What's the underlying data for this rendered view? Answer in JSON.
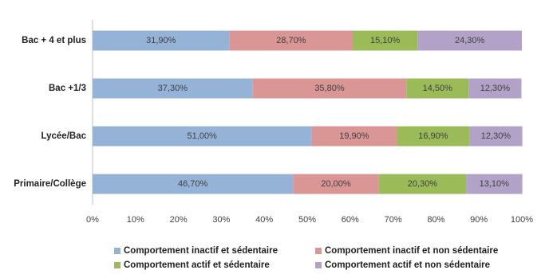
{
  "chart_data": {
    "type": "stacked-bar-horizontal",
    "categories": [
      "Bac + 4 et plus",
      "Bac +1/3",
      "Lycée/Bac",
      "Primaire/Collège"
    ],
    "series": [
      {
        "name": "Comportement inactif et sédentaire",
        "color": "#95b3d7",
        "values": [
          31.9,
          37.3,
          51.0,
          46.7
        ],
        "value_labels": [
          "31,90%",
          "37,30%",
          "51,00%",
          "46,70%"
        ]
      },
      {
        "name": "Comportement inactif et non sédentaire",
        "color": "#da9694",
        "values": [
          28.7,
          35.8,
          19.9,
          20.0
        ],
        "value_labels": [
          "28,70%",
          "35,80%",
          "19,90%",
          "20,00%"
        ]
      },
      {
        "name": "Comportement actif et sédentaire",
        "color": "#9bbb59",
        "values": [
          15.1,
          14.5,
          16.9,
          20.3
        ],
        "value_labels": [
          "15,10%",
          "14,50%",
          "16,90%",
          "20,30%"
        ]
      },
      {
        "name": "Comportement actif et non sédentaire",
        "color": "#b3a2c7",
        "values": [
          24.3,
          12.3,
          12.3,
          13.1
        ],
        "value_labels": [
          "24,30%",
          "12,30%",
          "12,30%",
          "13,10%"
        ]
      }
    ],
    "xlim": [
      0,
      100
    ],
    "xticks": [
      {
        "value": 0,
        "label": "0%"
      },
      {
        "value": 10,
        "label": "10%"
      },
      {
        "value": 20,
        "label": "20%"
      },
      {
        "value": 30,
        "label": "30%"
      },
      {
        "value": 40,
        "label": "40%"
      },
      {
        "value": 50,
        "label": "50%"
      },
      {
        "value": 60,
        "label": "60%"
      },
      {
        "value": 70,
        "label": "70%"
      },
      {
        "value": 80,
        "label": "80%"
      },
      {
        "value": 90,
        "label": "90%"
      },
      {
        "value": 100,
        "label": "100%"
      }
    ],
    "grid": false,
    "legend": "bottom"
  }
}
